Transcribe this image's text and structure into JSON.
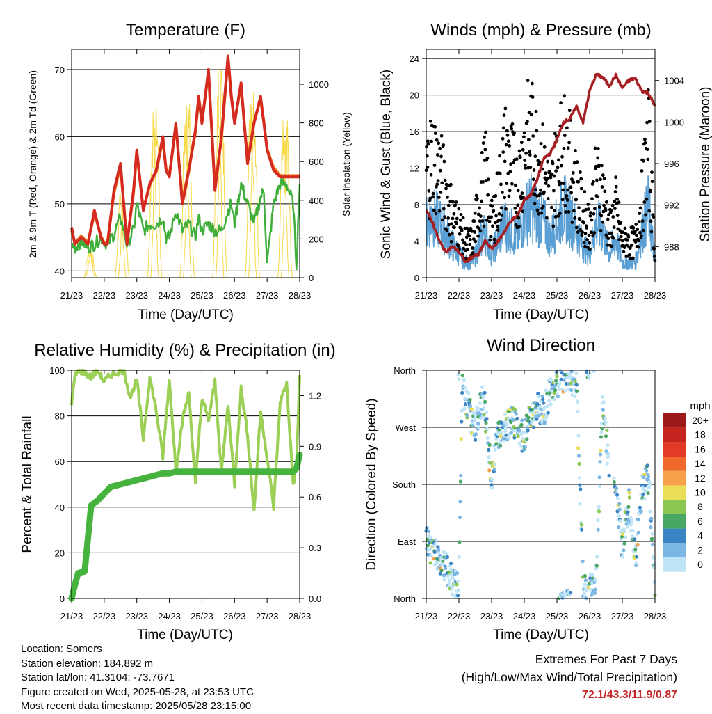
{
  "colors": {
    "red": "#d42a1f",
    "orange": "#f07a1f",
    "green_td": "#3fae3a",
    "yellow": "#f7d94a",
    "black": "#000000",
    "blue": "#5a9fd4",
    "maroon": "#a51f22",
    "rh_light_green": "#9ccf55",
    "precip_green": "#45b33d"
  },
  "x_ticks": [
    "21/23",
    "22/23",
    "23/23",
    "24/23",
    "25/23",
    "26/23",
    "27/23",
    "28/23"
  ],
  "chart_data": [
    {
      "id": "temperature",
      "type": "line",
      "title": "Temperature (F)",
      "xlabel": "Time (Day/UTC)",
      "ylabel": "2m & 9m T (Red, Orange) & 2m Td (Green)",
      "y2label": "Solar Insolation (Yellow)",
      "ylim": [
        39,
        73
      ],
      "y_ticks": [
        40,
        50,
        60,
        70
      ],
      "y2lim": [
        0,
        1180
      ],
      "y2_ticks": [
        0,
        200,
        400,
        600,
        800,
        1000
      ],
      "x": [
        0,
        0.1,
        0.3,
        0.5,
        0.7,
        0.9,
        1.0,
        1.1,
        1.3,
        1.5,
        1.7,
        1.9,
        2.0,
        2.2,
        2.4,
        2.6,
        2.8,
        2.9,
        3.0,
        3.2,
        3.4,
        3.6,
        3.8,
        3.9,
        4.0,
        4.2,
        4.4,
        4.6,
        4.8,
        4.9,
        5.0,
        5.2,
        5.4,
        5.6,
        5.8,
        5.9,
        6.0,
        6.2,
        6.4,
        6.6,
        6.8,
        6.9,
        7.0
      ],
      "series": [
        {
          "name": "2m T",
          "color": "red",
          "values": [
            46.5,
            44,
            45,
            44,
            49,
            45,
            44,
            44,
            52,
            56,
            44,
            52,
            58,
            49,
            53,
            55,
            60,
            55,
            54,
            62,
            50,
            55,
            61,
            66,
            62,
            70,
            52,
            60,
            72,
            66,
            62,
            68,
            56,
            62,
            66,
            62,
            58,
            55,
            54,
            54,
            54,
            54,
            54
          ]
        },
        {
          "name": "9m T",
          "color": "orange",
          "values": [
            46,
            44.2,
            45.2,
            44.2,
            48.6,
            45.2,
            44.2,
            44.2,
            51.6,
            55.6,
            44.2,
            51.6,
            57.6,
            49.2,
            52.8,
            54.8,
            59.6,
            55.2,
            54.2,
            61.6,
            50.4,
            55.2,
            60.6,
            65.6,
            62.2,
            69.6,
            52.4,
            59.8,
            71.6,
            66.2,
            62.2,
            67.6,
            56.4,
            62.2,
            65.6,
            62.2,
            58.2,
            55.4,
            54.2,
            54.2,
            54.2,
            54.2,
            54.2
          ]
        },
        {
          "name": "2m Td",
          "color": "green_td",
          "values": [
            44,
            43.5,
            44.5,
            43.5,
            44,
            45,
            44.5,
            44,
            45.5,
            48,
            44,
            46,
            50,
            46,
            47,
            47,
            48,
            45,
            45,
            49,
            46,
            47,
            45,
            48,
            46,
            47,
            46,
            46,
            49,
            50,
            47,
            53,
            50,
            47,
            51,
            52,
            41,
            50,
            53,
            53,
            50,
            41,
            53
          ]
        }
      ],
      "insolation_peaks": [
        0.55,
        0.6,
        1.5,
        1.6,
        2.5,
        2.6,
        3.5,
        3.6,
        4.5,
        4.6,
        5.5,
        5.6,
        6.5,
        6.6
      ],
      "insolation_values": [
        180,
        160,
        450,
        420,
        950,
        900,
        1000,
        980,
        1100,
        1120,
        1130,
        1100,
        900,
        860
      ]
    },
    {
      "id": "winds",
      "type": "scatter",
      "title": "Winds (mph) & Pressure (mb)",
      "xlabel": "Time (Day/UTC)",
      "ylabel": "Sonic Wind & Gust (Blue, Black)",
      "y2label": "Station Pressure (Maroon)",
      "ylim": [
        0,
        25
      ],
      "y_ticks": [
        0,
        4,
        8,
        12,
        16,
        20,
        24
      ],
      "y2lim": [
        985,
        1007
      ],
      "y2_ticks": [
        988,
        992,
        996,
        1000,
        1004
      ],
      "pressure_x": [
        0,
        0.2,
        0.4,
        0.6,
        0.8,
        1.0,
        1.2,
        1.4,
        1.6,
        1.8,
        2.0,
        2.2,
        2.4,
        2.6,
        2.8,
        3.0,
        3.2,
        3.4,
        3.6,
        3.8,
        4.0,
        4.2,
        4.4,
        4.6,
        4.8,
        5.0,
        5.2,
        5.4,
        5.6,
        5.8,
        6.0,
        6.2,
        6.4,
        6.6,
        6.8,
        7.0
      ],
      "pressure_values": [
        991.5,
        990.3,
        988.5,
        987.5,
        988,
        987.5,
        986.5,
        987,
        987.2,
        988.5,
        987.8,
        988.5,
        989.5,
        990.5,
        991,
        992.5,
        993,
        994.5,
        996.5,
        997,
        998.3,
        1000,
        1000.3,
        1001.5,
        1000,
        1003,
        1004.6,
        1004.3,
        1003.5,
        1004.5,
        1003.3,
        1004,
        1004.2,
        1003,
        1002.8,
        1001.5
      ],
      "wind_profile_x": [
        0,
        0.2,
        0.4,
        0.6,
        0.8,
        1.0,
        1.2,
        1.4,
        1.6,
        1.8,
        2.0,
        2.2,
        2.4,
        2.6,
        2.8,
        3.0,
        3.2,
        3.4,
        3.6,
        3.8,
        4.0,
        4.2,
        4.4,
        4.6,
        4.8,
        5.0,
        5.2,
        5.4,
        5.6,
        5.8,
        6.0,
        6.2,
        6.4,
        6.6,
        6.8,
        7.0
      ],
      "wind_profile_values": [
        7,
        8,
        7,
        6,
        4,
        3,
        2,
        2,
        4,
        6,
        3,
        5,
        7,
        6,
        5,
        8,
        9,
        8,
        7,
        5,
        7,
        9,
        8,
        6,
        4,
        3,
        7,
        6,
        3,
        5,
        2,
        2,
        2,
        6,
        9,
        2
      ],
      "gust_profile_values": [
        12,
        14,
        12,
        10,
        7,
        6,
        4,
        4,
        8,
        12,
        6,
        9,
        14,
        13,
        10,
        15,
        16,
        14,
        12,
        9,
        13,
        15,
        13,
        10,
        7,
        6,
        11,
        10,
        5,
        8,
        4,
        4,
        4,
        9,
        15,
        3
      ]
    },
    {
      "id": "rh_precip",
      "type": "line",
      "title": "Relative Humidity (%) & Precipitation (in)",
      "xlabel": "Time (Day/UTC)",
      "ylabel": "Percent & Total Rainfall",
      "ylim": [
        0,
        100
      ],
      "y_ticks": [
        0,
        20,
        40,
        60,
        80,
        100
      ],
      "y2lim": [
        0,
        1.35
      ],
      "y2_ticks": [
        "0.0",
        "0.3",
        "0.6",
        "0.9",
        "1.2"
      ],
      "y2_tick_values": [
        0,
        0.3,
        0.6,
        0.9,
        1.2
      ],
      "x": [
        0,
        0.1,
        0.2,
        0.4,
        0.6,
        0.8,
        1.0,
        1.2,
        1.4,
        1.6,
        1.8,
        2.0,
        2.2,
        2.4,
        2.6,
        2.8,
        3.0,
        3.2,
        3.4,
        3.6,
        3.8,
        4.0,
        4.2,
        4.4,
        4.6,
        4.8,
        5.0,
        5.2,
        5.4,
        5.6,
        5.8,
        6.0,
        6.2,
        6.4,
        6.6,
        6.8,
        6.9,
        7.0
      ],
      "series": [
        {
          "name": "RH",
          "color": "rh_light_green",
          "values": [
            86,
            97,
            100,
            99,
            97,
            100,
            95,
            98,
            99,
            100,
            88,
            96,
            70,
            97,
            82,
            62,
            96,
            56,
            78,
            90,
            50,
            88,
            78,
            95,
            55,
            85,
            50,
            92,
            72,
            38,
            82,
            62,
            40,
            86,
            94,
            50,
            58,
            98
          ]
        },
        {
          "name": "Total Rainfall",
          "color": "precip_green",
          "values": [
            0,
            0.08,
            0.15,
            0.16,
            0.55,
            0.58,
            0.62,
            0.66,
            0.67,
            0.68,
            0.69,
            0.7,
            0.71,
            0.72,
            0.73,
            0.74,
            0.74,
            0.75,
            0.75,
            0.75,
            0.75,
            0.75,
            0.75,
            0.75,
            0.75,
            0.75,
            0.75,
            0.75,
            0.75,
            0.75,
            0.75,
            0.75,
            0.75,
            0.75,
            0.75,
            0.75,
            0.77,
            0.85
          ]
        }
      ]
    },
    {
      "id": "wind_direction",
      "type": "scatter",
      "title": "Wind Direction",
      "xlabel": "Time (Day/UTC)",
      "ylabel": "Direction (Colored By Speed)",
      "y_ticks": [
        "North",
        "East",
        "South",
        "West",
        "North"
      ],
      "y_tick_values": [
        0,
        90,
        180,
        270,
        360
      ],
      "ylim": [
        0,
        360
      ],
      "legend_title": "mph",
      "legend_labels": [
        "20+",
        "18",
        "16",
        "14",
        "12",
        "10",
        "8",
        "6",
        "4",
        "2",
        "0"
      ],
      "legend_colors": [
        "#9e1a1a",
        "#c6241f",
        "#e23a26",
        "#f0692b",
        "#f7a24a",
        "#e9de55",
        "#8cc751",
        "#48a763",
        "#3b84c4",
        "#7cb6e3",
        "#bfe3f7"
      ],
      "direction_profile_x": [
        0,
        0.1,
        0.2,
        0.3,
        0.4,
        0.5,
        0.6,
        0.7,
        0.8,
        0.9,
        1.0,
        1.1,
        1.2,
        1.3,
        1.4,
        1.5,
        1.6,
        1.7,
        1.8,
        1.9,
        2.0,
        2.2,
        2.4,
        2.6,
        2.8,
        3.0,
        3.2,
        3.4,
        3.6,
        3.8,
        4.0,
        4.2,
        4.4,
        4.6,
        4.8,
        5.0,
        5.2,
        5.4,
        5.6,
        5.8,
        6.0,
        6.2,
        6.4,
        6.6,
        6.8,
        7.0
      ],
      "direction_profile_values": [
        90,
        80,
        70,
        75,
        60,
        55,
        50,
        40,
        30,
        20,
        10,
        330,
        320,
        300,
        280,
        270,
        290,
        310,
        300,
        240,
        190,
        260,
        270,
        280,
        275,
        250,
        290,
        300,
        295,
        330,
        340,
        350,
        345,
        340,
        20,
        10,
        30,
        320,
        200,
        180,
        80,
        150,
        60,
        170,
        190,
        30
      ]
    }
  ],
  "info": {
    "location": "Location: Somers",
    "elevation": "Station elevation: 184.892 m",
    "latlon": "Station lat/lon: 41.3104; -73.7671",
    "created": "Figure created on Wed, 2025-05-28, at 23:53 UTC",
    "recent": "Most recent data timestamp: 2025/05/28 23:15:00"
  },
  "extremes": {
    "title": "Extremes For Past 7 Days",
    "subtitle": "(High/Low/Max Wind/Total Precipitation)",
    "values": "72.1/43.3/11.9/0.87"
  }
}
